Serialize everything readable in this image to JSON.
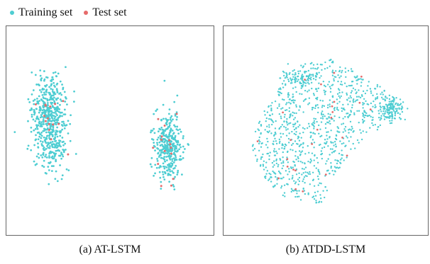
{
  "legend": {
    "items": [
      {
        "label": "Training set",
        "color": "#4ecdd2"
      },
      {
        "label": "Test set",
        "color": "#e66b6b"
      }
    ]
  },
  "chart_data": [
    {
      "type": "scatter",
      "title": "(a) AT-LSTM",
      "xlabel": "",
      "ylabel": "",
      "grid": false,
      "clusters": [
        {
          "center": [
            0.21,
            0.45
          ],
          "spread": [
            0.07,
            0.22
          ],
          "count": 560
        },
        {
          "center": [
            0.78,
            0.58
          ],
          "spread": [
            0.055,
            0.15
          ],
          "count": 340
        }
      ],
      "series": [
        {
          "name": "Training set",
          "color": "#4ecdd2",
          "count": 900
        },
        {
          "name": "Test set",
          "color": "#e66b6b",
          "count": 30
        }
      ]
    },
    {
      "type": "scatter",
      "title": "(b) ATDD-LSTM",
      "xlabel": "",
      "ylabel": "",
      "grid": false,
      "shape": "fan-shaped cloud spreading from lower-left to upper-right",
      "series": [
        {
          "name": "Training set",
          "color": "#4ecdd2",
          "count": 950
        },
        {
          "name": "Test set",
          "color": "#e66b6b",
          "count": 25
        }
      ]
    }
  ]
}
